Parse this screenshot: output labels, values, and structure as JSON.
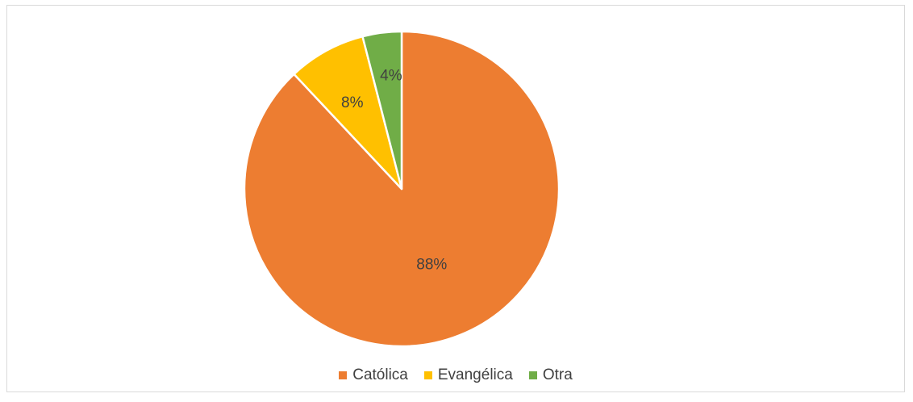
{
  "chart_data": {
    "type": "pie",
    "title": "",
    "categories": [
      "Católica",
      "Evangélica",
      "Otra"
    ],
    "values": [
      88,
      8,
      4
    ],
    "labels": [
      "88%",
      "8%",
      "4%"
    ],
    "colors": [
      "#ED7D31",
      "#FFC000",
      "#70AD47"
    ],
    "legend_position": "bottom",
    "start_angle_deg": 0,
    "direction": "clockwise-from-top"
  },
  "legend": {
    "items": [
      {
        "label": "Católica",
        "color": "#ED7D31"
      },
      {
        "label": "Evangélica",
        "color": "#FFC000"
      },
      {
        "label": "Otra",
        "color": "#70AD47"
      }
    ]
  }
}
